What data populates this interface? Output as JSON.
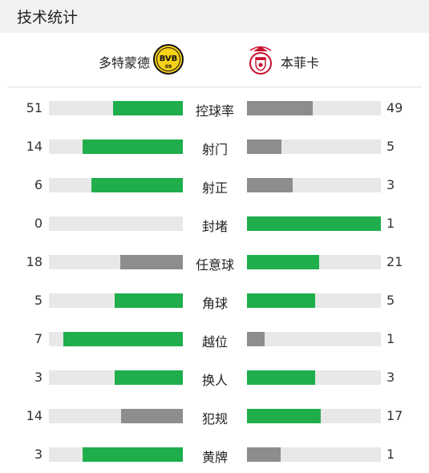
{
  "header": {
    "title": "技术统计"
  },
  "teams": {
    "home": {
      "name": "多特蒙德",
      "logo_text": "BVB",
      "logo_sub": "09"
    },
    "away": {
      "name": "本菲卡"
    }
  },
  "colors": {
    "leader": "#1fae4b",
    "trailer": "#8d8d8d",
    "track": "#e8e8e8"
  },
  "stats": [
    {
      "label": "控球率",
      "home": "51",
      "away": "49",
      "home_pct": 52,
      "away_pct": 49,
      "home_lead": true,
      "away_lead": false
    },
    {
      "label": "射门",
      "home": "14",
      "away": "5",
      "home_pct": 75,
      "away_pct": 26,
      "home_lead": true,
      "away_lead": false
    },
    {
      "label": "射正",
      "home": "6",
      "away": "3",
      "home_pct": 68,
      "away_pct": 34,
      "home_lead": true,
      "away_lead": false
    },
    {
      "label": "封堵",
      "home": "0",
      "away": "1",
      "home_pct": 0,
      "away_pct": 100,
      "home_lead": false,
      "away_lead": true
    },
    {
      "label": "任意球",
      "home": "18",
      "away": "21",
      "home_pct": 47,
      "away_pct": 54,
      "home_lead": false,
      "away_lead": true
    },
    {
      "label": "角球",
      "home": "5",
      "away": "5",
      "home_pct": 51,
      "away_pct": 51,
      "home_lead": true,
      "away_lead": true
    },
    {
      "label": "越位",
      "home": "7",
      "away": "1",
      "home_pct": 89,
      "away_pct": 13,
      "home_lead": true,
      "away_lead": false
    },
    {
      "label": "换人",
      "home": "3",
      "away": "3",
      "home_pct": 51,
      "away_pct": 51,
      "home_lead": true,
      "away_lead": true
    },
    {
      "label": "犯规",
      "home": "14",
      "away": "17",
      "home_pct": 46,
      "away_pct": 55,
      "home_lead": false,
      "away_lead": true
    },
    {
      "label": "黄牌",
      "home": "3",
      "away": "1",
      "home_pct": 75,
      "away_pct": 25,
      "home_lead": true,
      "away_lead": false
    }
  ]
}
